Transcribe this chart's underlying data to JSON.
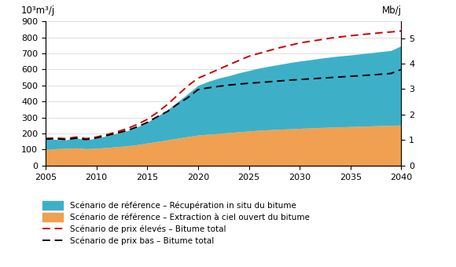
{
  "years": [
    2005,
    2006,
    2007,
    2008,
    2009,
    2010,
    2011,
    2012,
    2013,
    2014,
    2015,
    2016,
    2017,
    2018,
    2019,
    2020,
    2021,
    2022,
    2023,
    2024,
    2025,
    2026,
    2027,
    2028,
    2029,
    2030,
    2031,
    2032,
    2033,
    2034,
    2035,
    2036,
    2037,
    2038,
    2039,
    2040
  ],
  "open_pit": [
    100,
    105,
    107,
    110,
    105,
    108,
    112,
    118,
    122,
    130,
    140,
    150,
    160,
    170,
    180,
    190,
    195,
    200,
    205,
    210,
    215,
    220,
    223,
    226,
    229,
    232,
    234,
    237,
    239,
    241,
    243,
    245,
    247,
    249,
    251,
    253
  ],
  "in_situ": [
    65,
    58,
    53,
    62,
    55,
    62,
    73,
    83,
    95,
    110,
    130,
    158,
    188,
    228,
    268,
    310,
    330,
    345,
    355,
    368,
    378,
    388,
    397,
    405,
    413,
    420,
    426,
    432,
    438,
    443,
    447,
    452,
    457,
    462,
    467,
    495
  ],
  "high_price": [
    170,
    172,
    168,
    178,
    168,
    178,
    193,
    210,
    230,
    256,
    288,
    332,
    382,
    440,
    498,
    545,
    572,
    600,
    628,
    655,
    682,
    700,
    718,
    735,
    750,
    765,
    775,
    785,
    795,
    803,
    810,
    817,
    823,
    829,
    834,
    840
  ],
  "low_price": [
    165,
    167,
    162,
    171,
    162,
    172,
    187,
    202,
    218,
    241,
    269,
    305,
    338,
    384,
    424,
    474,
    485,
    494,
    502,
    508,
    514,
    518,
    523,
    528,
    533,
    537,
    541,
    545,
    549,
    553,
    557,
    561,
    565,
    570,
    575,
    600
  ],
  "color_open_pit": "#F0A050",
  "color_in_situ": "#3DB0C8",
  "color_high_price": "#CC0000",
  "color_low_price": "#000000",
  "ylim": [
    0,
    900
  ],
  "right_ticks": [
    0,
    1,
    2,
    3,
    4,
    5
  ],
  "right_tick_values": [
    0,
    159,
    318,
    477,
    636,
    795
  ],
  "ylabel_left": "10³m³/j",
  "ylabel_right": "Mb/j",
  "yticks_left": [
    0,
    100,
    200,
    300,
    400,
    500,
    600,
    700,
    800,
    900
  ],
  "xticks": [
    2005,
    2010,
    2015,
    2020,
    2025,
    2030,
    2035,
    2040
  ],
  "legend_labels": [
    "Scénario de référence – Récupération in situ du bitume",
    "Scénario de référence – Extraction à ciel ouvert du bitume",
    "Scénario de prix élevés – Bitume total",
    "Scénario de prix bas – Bitume total"
  ],
  "figsize": [
    5.8,
    3.4
  ],
  "dpi": 100
}
